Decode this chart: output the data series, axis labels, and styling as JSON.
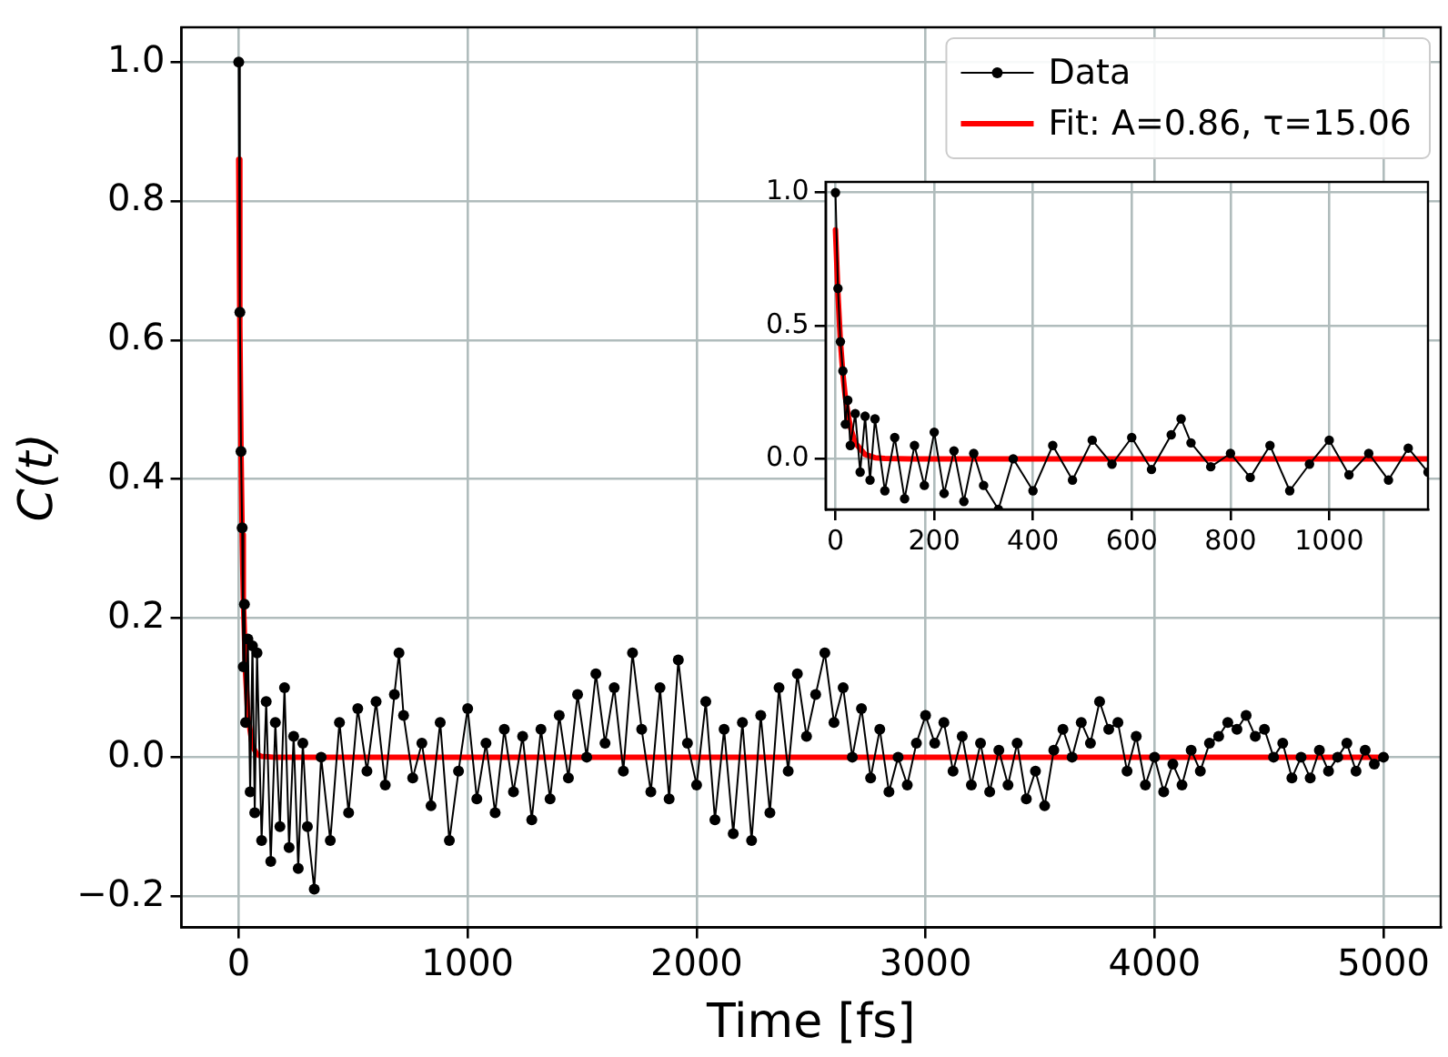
{
  "chart_data": [
    {
      "type": "line",
      "xlabel": "Time [fs]",
      "ylabel": "C(t)",
      "xlim": [
        -250,
        5250
      ],
      "ylim": [
        -0.245,
        1.05
      ],
      "xticks": [
        0,
        1000,
        2000,
        3000,
        4000,
        5000
      ],
      "yticks": [
        {
          "value": -0.2,
          "label": "−0.2"
        },
        {
          "value": 0,
          "label": "0.0"
        },
        {
          "value": 0.2,
          "label": "0.2"
        },
        {
          "value": 0.4,
          "label": "0.4"
        },
        {
          "value": 0.6,
          "label": "0.6"
        },
        {
          "value": 0.8,
          "label": "0.8"
        },
        {
          "value": 1,
          "label": "1.0"
        }
      ],
      "grid": true,
      "legend": "top right",
      "series": [
        {
          "name": "Data",
          "color": "#000000",
          "marker": "circle",
          "x": [
            0,
            5,
            10,
            15,
            20,
            25,
            30,
            40,
            50,
            60,
            70,
            80,
            100,
            120,
            140,
            160,
            180,
            200,
            220,
            240,
            260,
            280,
            300,
            330,
            360,
            400,
            440,
            480,
            520,
            560,
            600,
            640,
            680,
            700,
            720,
            760,
            800,
            840,
            880,
            920,
            960,
            1000,
            1040,
            1080,
            1120,
            1160,
            1200,
            1240,
            1280,
            1320,
            1360,
            1400,
            1440,
            1480,
            1520,
            1560,
            1600,
            1640,
            1680,
            1720,
            1760,
            1800,
            1840,
            1880,
            1920,
            1960,
            2000,
            2040,
            2080,
            2120,
            2160,
            2200,
            2240,
            2280,
            2320,
            2360,
            2400,
            2440,
            2480,
            2520,
            2560,
            2600,
            2640,
            2680,
            2720,
            2760,
            2800,
            2840,
            2880,
            2920,
            2960,
            3000,
            3040,
            3080,
            3120,
            3160,
            3200,
            3240,
            3280,
            3320,
            3360,
            3400,
            3440,
            3480,
            3520,
            3560,
            3600,
            3640,
            3680,
            3720,
            3760,
            3800,
            3840,
            3880,
            3920,
            3960,
            4000,
            4040,
            4080,
            4120,
            4160,
            4200,
            4240,
            4280,
            4320,
            4360,
            4400,
            4440,
            4480,
            4520,
            4560,
            4600,
            4640,
            4680,
            4720,
            4760,
            4800,
            4840,
            4880,
            4920,
            4960,
            5000
          ],
          "values": [
            1.0,
            0.64,
            0.44,
            0.33,
            0.13,
            0.22,
            0.05,
            0.17,
            -0.05,
            0.16,
            -0.08,
            0.15,
            -0.12,
            0.08,
            -0.15,
            0.05,
            -0.1,
            0.1,
            -0.13,
            0.03,
            -0.16,
            0.02,
            -0.1,
            -0.19,
            0.0,
            -0.12,
            0.05,
            -0.08,
            0.07,
            -0.02,
            0.08,
            -0.04,
            0.09,
            0.15,
            0.06,
            -0.03,
            0.02,
            -0.07,
            0.05,
            -0.12,
            -0.02,
            0.07,
            -0.06,
            0.02,
            -0.08,
            0.04,
            -0.05,
            0.03,
            -0.09,
            0.04,
            -0.06,
            0.06,
            -0.03,
            0.09,
            0.0,
            0.12,
            0.02,
            0.1,
            -0.02,
            0.15,
            0.04,
            -0.05,
            0.1,
            -0.06,
            0.14,
            0.02,
            -0.04,
            0.08,
            -0.09,
            0.04,
            -0.11,
            0.05,
            -0.12,
            0.06,
            -0.08,
            0.1,
            -0.02,
            0.12,
            0.03,
            0.09,
            0.15,
            0.05,
            0.1,
            0.0,
            0.07,
            -0.03,
            0.04,
            -0.05,
            0.0,
            -0.04,
            0.02,
            0.06,
            0.02,
            0.05,
            -0.02,
            0.03,
            -0.04,
            0.02,
            -0.05,
            0.01,
            -0.04,
            0.02,
            -0.06,
            -0.02,
            -0.07,
            0.01,
            0.04,
            0.0,
            0.05,
            0.02,
            0.08,
            0.04,
            0.05,
            -0.02,
            0.03,
            -0.04,
            0.0,
            -0.05,
            -0.01,
            -0.04,
            0.01,
            -0.02,
            0.02,
            0.03,
            0.05,
            0.04,
            0.06,
            0.03,
            0.04,
            0.0,
            0.02,
            -0.03,
            0.0,
            -0.03,
            0.01,
            -0.02,
            0.0,
            0.02,
            -0.02,
            0.01,
            -0.01,
            0.0
          ]
        },
        {
          "name": "Fit: A=0.86, τ=15.06",
          "color": "#ff0000",
          "marker": "none",
          "x": [
            0,
            5,
            10,
            15,
            20,
            30,
            40,
            60,
            80,
            100,
            150,
            300,
            1000,
            2000,
            3000,
            4000,
            5000
          ],
          "values": [
            0.86,
            0.62,
            0.44,
            0.32,
            0.23,
            0.12,
            0.06,
            0.016,
            0.004,
            0.001,
            0,
            0,
            0,
            0,
            0,
            0,
            0
          ]
        }
      ]
    },
    {
      "type": "line",
      "xlim": [
        -20,
        1200
      ],
      "ylim": [
        -0.19,
        1.04
      ],
      "xticks": [
        0,
        200,
        400,
        600,
        800,
        1000
      ],
      "yticks": [
        {
          "value": 0,
          "label": "0.0"
        },
        {
          "value": 0.5,
          "label": "0.5"
        },
        {
          "value": 1,
          "label": "1.0"
        }
      ],
      "grid": true,
      "series": [
        {
          "color": "#000000",
          "marker": "circle",
          "x": [
            0,
            5,
            10,
            15,
            20,
            25,
            30,
            40,
            50,
            60,
            70,
            80,
            100,
            120,
            140,
            160,
            180,
            200,
            220,
            240,
            260,
            280,
            300,
            330,
            360,
            400,
            440,
            480,
            520,
            560,
            600,
            640,
            680,
            700,
            720,
            760,
            800,
            840,
            880,
            920,
            960,
            1000,
            1040,
            1080,
            1120,
            1160,
            1200
          ],
          "values": [
            1.0,
            0.64,
            0.44,
            0.33,
            0.13,
            0.22,
            0.05,
            0.17,
            -0.05,
            0.16,
            -0.08,
            0.15,
            -0.12,
            0.08,
            -0.15,
            0.05,
            -0.1,
            0.1,
            -0.13,
            0.03,
            -0.16,
            0.02,
            -0.1,
            -0.19,
            0.0,
            -0.12,
            0.05,
            -0.08,
            0.07,
            -0.02,
            0.08,
            -0.04,
            0.09,
            0.15,
            0.06,
            -0.03,
            0.02,
            -0.07,
            0.05,
            -0.12,
            -0.02,
            0.07,
            -0.06,
            0.02,
            -0.08,
            0.04,
            -0.05
          ]
        },
        {
          "color": "#ff0000",
          "marker": "none",
          "x": [
            0,
            5,
            10,
            15,
            20,
            30,
            40,
            60,
            80,
            100,
            150,
            300,
            600,
            1000,
            1200
          ],
          "values": [
            0.86,
            0.62,
            0.44,
            0.32,
            0.23,
            0.12,
            0.06,
            0.016,
            0.004,
            0.001,
            0,
            0,
            0,
            0,
            0
          ]
        }
      ]
    }
  ]
}
